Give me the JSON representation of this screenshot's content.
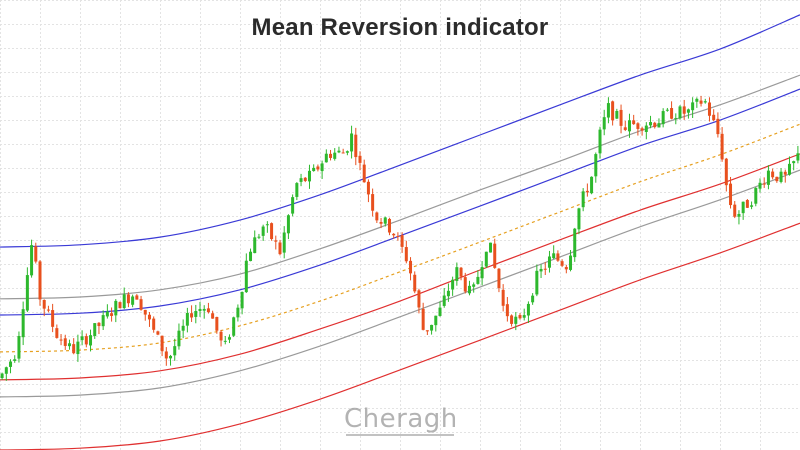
{
  "chart_data": {
    "type": "candlestick",
    "title": "Mean Reversion indicator",
    "xlabel": "",
    "ylabel": "",
    "grid": true,
    "x_range": [
      0,
      100
    ],
    "ylim": [
      0,
      100
    ],
    "colors": {
      "bullish": "#2db82d",
      "bearish": "#e8501e",
      "grid": "#e3e3e3"
    },
    "bands": [
      {
        "name": "upper-outer",
        "color": "#3a3ad6",
        "style": "solid",
        "points": [
          [
            0,
            45.1
          ],
          [
            10,
            45.6
          ],
          [
            20,
            47.3
          ],
          [
            30,
            51.1
          ],
          [
            40,
            56.7
          ],
          [
            50,
            63.3
          ],
          [
            60,
            70.0
          ],
          [
            70,
            76.7
          ],
          [
            80,
            83.3
          ],
          [
            90,
            89.1
          ],
          [
            100,
            96.7
          ]
        ]
      },
      {
        "name": "upper-inner",
        "color": "#9a9a9a",
        "style": "solid",
        "points": [
          [
            0,
            33.6
          ],
          [
            10,
            34.0
          ],
          [
            20,
            35.6
          ],
          [
            30,
            39.1
          ],
          [
            40,
            44.7
          ],
          [
            50,
            51.1
          ],
          [
            60,
            57.8
          ],
          [
            70,
            64.2
          ],
          [
            80,
            70.9
          ],
          [
            90,
            76.7
          ],
          [
            100,
            83.3
          ]
        ]
      },
      {
        "name": "upper-mid",
        "color": "#3a3ad6",
        "style": "solid",
        "points": [
          [
            0,
            30.0
          ],
          [
            10,
            30.4
          ],
          [
            20,
            32.0
          ],
          [
            30,
            35.6
          ],
          [
            40,
            41.1
          ],
          [
            50,
            47.6
          ],
          [
            60,
            54.2
          ],
          [
            70,
            60.9
          ],
          [
            80,
            67.6
          ],
          [
            90,
            73.3
          ],
          [
            100,
            80.2
          ]
        ]
      },
      {
        "name": "mean",
        "color": "#e6a020",
        "style": "dashed",
        "points": [
          [
            0,
            21.8
          ],
          [
            10,
            22.2
          ],
          [
            20,
            23.8
          ],
          [
            30,
            27.6
          ],
          [
            40,
            33.1
          ],
          [
            50,
            39.6
          ],
          [
            60,
            46.2
          ],
          [
            70,
            52.9
          ],
          [
            80,
            59.6
          ],
          [
            90,
            65.6
          ],
          [
            100,
            72.4
          ]
        ]
      },
      {
        "name": "lower-mid",
        "color": "#e03030",
        "style": "solid",
        "points": [
          [
            0,
            15.6
          ],
          [
            10,
            16.0
          ],
          [
            20,
            17.6
          ],
          [
            30,
            21.3
          ],
          [
            40,
            26.9
          ],
          [
            50,
            33.1
          ],
          [
            60,
            40.0
          ],
          [
            70,
            46.7
          ],
          [
            80,
            53.3
          ],
          [
            90,
            59.1
          ],
          [
            100,
            65.8
          ]
        ]
      },
      {
        "name": "lower-inner",
        "color": "#9a9a9a",
        "style": "solid",
        "points": [
          [
            0,
            11.8
          ],
          [
            10,
            12.2
          ],
          [
            20,
            13.8
          ],
          [
            30,
            17.6
          ],
          [
            40,
            23.1
          ],
          [
            50,
            29.6
          ],
          [
            60,
            36.2
          ],
          [
            70,
            42.9
          ],
          [
            80,
            49.6
          ],
          [
            90,
            55.6
          ],
          [
            100,
            62.2
          ]
        ]
      },
      {
        "name": "lower-outer",
        "color": "#e03030",
        "style": "solid",
        "points": [
          [
            0,
            0.0
          ],
          [
            10,
            0.4
          ],
          [
            20,
            2.0
          ],
          [
            30,
            5.8
          ],
          [
            40,
            11.3
          ],
          [
            50,
            17.8
          ],
          [
            60,
            24.4
          ],
          [
            70,
            31.1
          ],
          [
            80,
            37.8
          ],
          [
            90,
            43.8
          ],
          [
            100,
            50.4
          ]
        ]
      }
    ],
    "price_path": [
      [
        0,
        16.0
      ],
      [
        2,
        22.0
      ],
      [
        4,
        46.0
      ],
      [
        5,
        34.0
      ],
      [
        7,
        26.0
      ],
      [
        9,
        22.0
      ],
      [
        12,
        27.0
      ],
      [
        15,
        33.0
      ],
      [
        17,
        35.0
      ],
      [
        19,
        27.0
      ],
      [
        21,
        20.0
      ],
      [
        24,
        31.0
      ],
      [
        26,
        32.0
      ],
      [
        28,
        22.0
      ],
      [
        30,
        34.0
      ],
      [
        31,
        44.0
      ],
      [
        33,
        50.0
      ],
      [
        35,
        44.0
      ],
      [
        37,
        59.0
      ],
      [
        39,
        61.0
      ],
      [
        41,
        66.0
      ],
      [
        43,
        66.0
      ],
      [
        44,
        70.0
      ],
      [
        45,
        63.0
      ],
      [
        47,
        52.0
      ],
      [
        49,
        49.0
      ],
      [
        51,
        42.0
      ],
      [
        53,
        26.0
      ],
      [
        55,
        31.0
      ],
      [
        57,
        40.0
      ],
      [
        59,
        34.0
      ],
      [
        61,
        47.0
      ],
      [
        63,
        31.0
      ],
      [
        65,
        28.0
      ],
      [
        67,
        38.0
      ],
      [
        69,
        43.0
      ],
      [
        71,
        41.0
      ],
      [
        72,
        52.0
      ],
      [
        74,
        61.0
      ],
      [
        75,
        70.0
      ],
      [
        76,
        76.0
      ],
      [
        78,
        72.0
      ],
      [
        82,
        73.0
      ],
      [
        84,
        75.0
      ],
      [
        86,
        75.0
      ],
      [
        88,
        78.0
      ],
      [
        90,
        69.0
      ],
      [
        91,
        56.0
      ],
      [
        92,
        52.0
      ],
      [
        94,
        56.0
      ],
      [
        96,
        62.0
      ],
      [
        98,
        60.0
      ],
      [
        100,
        66.0
      ]
    ],
    "candle_count": 190,
    "watermark": "Cheragh"
  }
}
